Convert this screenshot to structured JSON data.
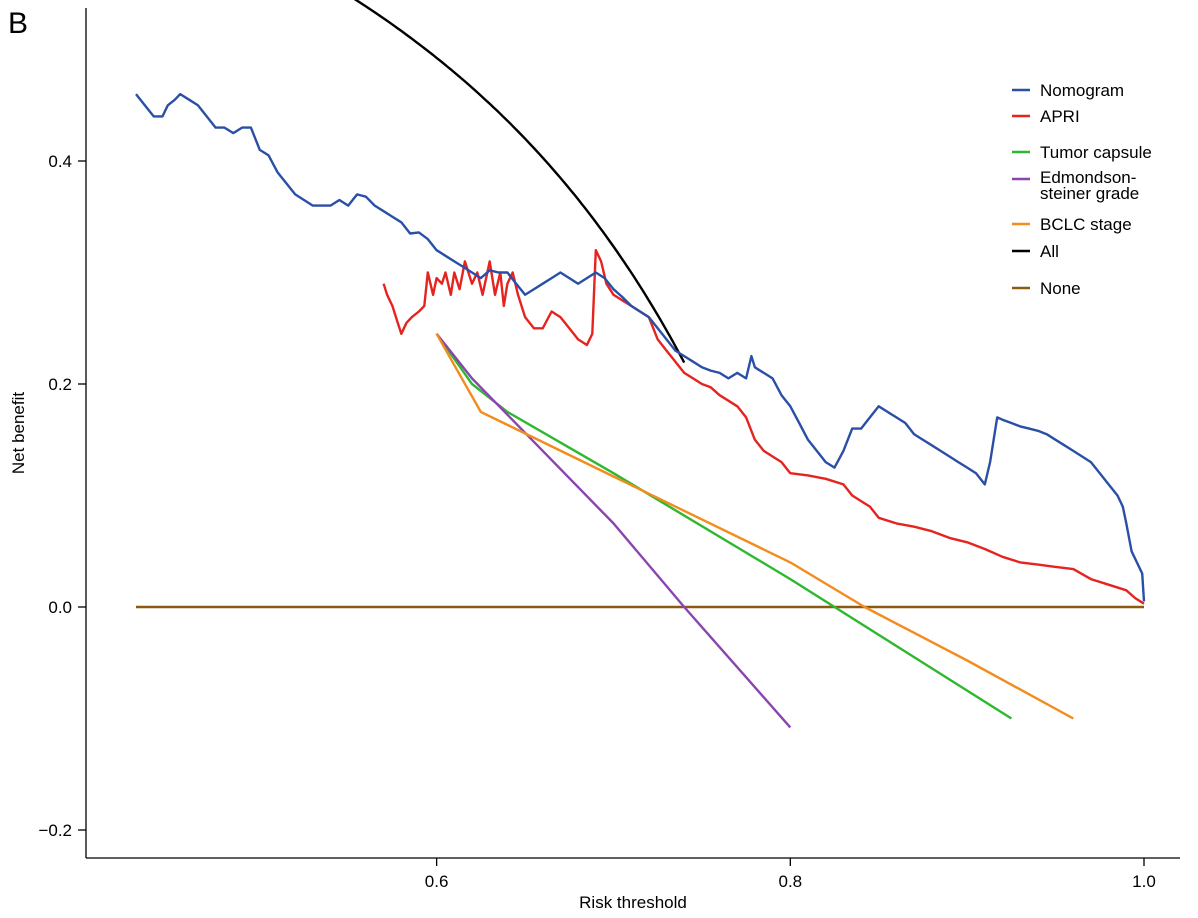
{
  "panel_label": "B",
  "chart_data": {
    "type": "line",
    "xlabel": "Risk threshold",
    "ylabel": "Net benefit",
    "xlim": [
      0.43,
      1.01
    ],
    "ylim": [
      -0.21,
      0.54
    ],
    "xticks": [
      0.6,
      0.8,
      1.0
    ],
    "xtick_labels": [
      "0.6",
      "0.8",
      "1.0"
    ],
    "yticks": [
      -0.2,
      0.0,
      0.2,
      0.4
    ],
    "ytick_labels": [
      "−0.2",
      "0.0",
      "0.2",
      "0.4"
    ],
    "grid": false,
    "legend_position": "top-right",
    "series": [
      {
        "name": "Nomogram",
        "color": "#2a4fa6",
        "points": [
          [
            0.43,
            0.46
          ],
          [
            0.435,
            0.45
          ],
          [
            0.44,
            0.44
          ],
          [
            0.445,
            0.44
          ],
          [
            0.448,
            0.45
          ],
          [
            0.452,
            0.455
          ],
          [
            0.455,
            0.46
          ],
          [
            0.46,
            0.455
          ],
          [
            0.465,
            0.45
          ],
          [
            0.47,
            0.44
          ],
          [
            0.475,
            0.43
          ],
          [
            0.48,
            0.43
          ],
          [
            0.485,
            0.425
          ],
          [
            0.49,
            0.43
          ],
          [
            0.495,
            0.43
          ],
          [
            0.5,
            0.41
          ],
          [
            0.505,
            0.405
          ],
          [
            0.51,
            0.39
          ],
          [
            0.515,
            0.38
          ],
          [
            0.52,
            0.37
          ],
          [
            0.525,
            0.365
          ],
          [
            0.53,
            0.36
          ],
          [
            0.535,
            0.36
          ],
          [
            0.54,
            0.36
          ],
          [
            0.545,
            0.365
          ],
          [
            0.55,
            0.36
          ],
          [
            0.555,
            0.37
          ],
          [
            0.56,
            0.368
          ],
          [
            0.565,
            0.36
          ],
          [
            0.57,
            0.355
          ],
          [
            0.575,
            0.35
          ],
          [
            0.58,
            0.345
          ],
          [
            0.585,
            0.335
          ],
          [
            0.59,
            0.336
          ],
          [
            0.595,
            0.33
          ],
          [
            0.6,
            0.32
          ],
          [
            0.605,
            0.315
          ],
          [
            0.61,
            0.31
          ],
          [
            0.615,
            0.305
          ],
          [
            0.62,
            0.3
          ],
          [
            0.625,
            0.295
          ],
          [
            0.63,
            0.302
          ],
          [
            0.635,
            0.3
          ],
          [
            0.64,
            0.3
          ],
          [
            0.645,
            0.29
          ],
          [
            0.65,
            0.28
          ],
          [
            0.655,
            0.285
          ],
          [
            0.66,
            0.29
          ],
          [
            0.665,
            0.295
          ],
          [
            0.67,
            0.3
          ],
          [
            0.675,
            0.295
          ],
          [
            0.68,
            0.29
          ],
          [
            0.685,
            0.295
          ],
          [
            0.69,
            0.3
          ],
          [
            0.695,
            0.295
          ],
          [
            0.7,
            0.285
          ],
          [
            0.705,
            0.278
          ],
          [
            0.71,
            0.27
          ],
          [
            0.715,
            0.265
          ],
          [
            0.72,
            0.26
          ],
          [
            0.725,
            0.25
          ],
          [
            0.73,
            0.24
          ],
          [
            0.735,
            0.23
          ],
          [
            0.74,
            0.225
          ],
          [
            0.745,
            0.22
          ],
          [
            0.75,
            0.215
          ],
          [
            0.755,
            0.212
          ],
          [
            0.76,
            0.21
          ],
          [
            0.765,
            0.205
          ],
          [
            0.77,
            0.21
          ],
          [
            0.775,
            0.205
          ],
          [
            0.778,
            0.225
          ],
          [
            0.78,
            0.215
          ],
          [
            0.785,
            0.21
          ],
          [
            0.79,
            0.205
          ],
          [
            0.795,
            0.19
          ],
          [
            0.8,
            0.18
          ],
          [
            0.805,
            0.165
          ],
          [
            0.81,
            0.15
          ],
          [
            0.815,
            0.14
          ],
          [
            0.82,
            0.13
          ],
          [
            0.825,
            0.125
          ],
          [
            0.83,
            0.14
          ],
          [
            0.835,
            0.16
          ],
          [
            0.84,
            0.16
          ],
          [
            0.845,
            0.17
          ],
          [
            0.85,
            0.18
          ],
          [
            0.855,
            0.175
          ],
          [
            0.86,
            0.17
          ],
          [
            0.865,
            0.165
          ],
          [
            0.87,
            0.155
          ],
          [
            0.875,
            0.15
          ],
          [
            0.88,
            0.145
          ],
          [
            0.885,
            0.14
          ],
          [
            0.89,
            0.135
          ],
          [
            0.895,
            0.13
          ],
          [
            0.9,
            0.125
          ],
          [
            0.905,
            0.12
          ],
          [
            0.91,
            0.11
          ],
          [
            0.913,
            0.13
          ],
          [
            0.917,
            0.17
          ],
          [
            0.92,
            0.168
          ],
          [
            0.925,
            0.165
          ],
          [
            0.93,
            0.162
          ],
          [
            0.935,
            0.16
          ],
          [
            0.94,
            0.158
          ],
          [
            0.945,
            0.155
          ],
          [
            0.95,
            0.15
          ],
          [
            0.955,
            0.145
          ],
          [
            0.96,
            0.14
          ],
          [
            0.965,
            0.135
          ],
          [
            0.97,
            0.13
          ],
          [
            0.975,
            0.12
          ],
          [
            0.98,
            0.11
          ],
          [
            0.985,
            0.1
          ],
          [
            0.988,
            0.09
          ],
          [
            0.99,
            0.075
          ],
          [
            0.993,
            0.05
          ],
          [
            0.996,
            0.04
          ],
          [
            0.999,
            0.03
          ],
          [
            1.0,
            0.005
          ]
        ]
      },
      {
        "name": "APRI",
        "color": "#e52420",
        "points": [
          [
            0.57,
            0.29
          ],
          [
            0.572,
            0.28
          ],
          [
            0.575,
            0.27
          ],
          [
            0.578,
            0.255
          ],
          [
            0.58,
            0.245
          ],
          [
            0.583,
            0.255
          ],
          [
            0.586,
            0.26
          ],
          [
            0.59,
            0.265
          ],
          [
            0.593,
            0.27
          ],
          [
            0.595,
            0.3
          ],
          [
            0.598,
            0.28
          ],
          [
            0.6,
            0.295
          ],
          [
            0.603,
            0.29
          ],
          [
            0.605,
            0.3
          ],
          [
            0.608,
            0.28
          ],
          [
            0.61,
            0.3
          ],
          [
            0.613,
            0.285
          ],
          [
            0.616,
            0.31
          ],
          [
            0.62,
            0.29
          ],
          [
            0.623,
            0.3
          ],
          [
            0.626,
            0.28
          ],
          [
            0.63,
            0.31
          ],
          [
            0.633,
            0.28
          ],
          [
            0.636,
            0.3
          ],
          [
            0.638,
            0.27
          ],
          [
            0.64,
            0.29
          ],
          [
            0.643,
            0.3
          ],
          [
            0.646,
            0.28
          ],
          [
            0.65,
            0.26
          ],
          [
            0.655,
            0.25
          ],
          [
            0.66,
            0.25
          ],
          [
            0.665,
            0.265
          ],
          [
            0.67,
            0.26
          ],
          [
            0.675,
            0.25
          ],
          [
            0.68,
            0.24
          ],
          [
            0.685,
            0.235
          ],
          [
            0.688,
            0.245
          ],
          [
            0.69,
            0.32
          ],
          [
            0.693,
            0.31
          ],
          [
            0.696,
            0.29
          ],
          [
            0.7,
            0.28
          ],
          [
            0.705,
            0.275
          ],
          [
            0.71,
            0.27
          ],
          [
            0.715,
            0.265
          ],
          [
            0.72,
            0.26
          ],
          [
            0.725,
            0.24
          ],
          [
            0.73,
            0.23
          ],
          [
            0.735,
            0.22
          ],
          [
            0.74,
            0.21
          ],
          [
            0.745,
            0.205
          ],
          [
            0.75,
            0.2
          ],
          [
            0.755,
            0.197
          ],
          [
            0.76,
            0.19
          ],
          [
            0.765,
            0.185
          ],
          [
            0.77,
            0.18
          ],
          [
            0.775,
            0.17
          ],
          [
            0.78,
            0.15
          ],
          [
            0.785,
            0.14
          ],
          [
            0.79,
            0.135
          ],
          [
            0.795,
            0.13
          ],
          [
            0.8,
            0.12
          ],
          [
            0.81,
            0.118
          ],
          [
            0.82,
            0.115
          ],
          [
            0.83,
            0.11
          ],
          [
            0.835,
            0.1
          ],
          [
            0.84,
            0.095
          ],
          [
            0.845,
            0.09
          ],
          [
            0.85,
            0.08
          ],
          [
            0.86,
            0.075
          ],
          [
            0.87,
            0.072
          ],
          [
            0.88,
            0.068
          ],
          [
            0.89,
            0.062
          ],
          [
            0.9,
            0.058
          ],
          [
            0.91,
            0.052
          ],
          [
            0.92,
            0.045
          ],
          [
            0.93,
            0.04
          ],
          [
            0.94,
            0.038
          ],
          [
            0.95,
            0.036
          ],
          [
            0.96,
            0.034
          ],
          [
            0.97,
            0.025
          ],
          [
            0.98,
            0.02
          ],
          [
            0.99,
            0.015
          ],
          [
            0.995,
            0.008
          ],
          [
            1.0,
            0.003
          ]
        ]
      },
      {
        "name": "Tumor capsule",
        "color": "#2eb82e",
        "points": [
          [
            0.6,
            0.245
          ],
          [
            0.62,
            0.2
          ],
          [
            0.64,
            0.175
          ],
          [
            0.7,
            0.12
          ],
          [
            0.8,
            0.025
          ],
          [
            0.86,
            -0.035
          ],
          [
            0.925,
            -0.1
          ]
        ]
      },
      {
        "name": "Edmondson-steiner grade",
        "color": "#8a44b0",
        "points": [
          [
            0.6,
            0.245
          ],
          [
            0.62,
            0.205
          ],
          [
            0.7,
            0.075
          ],
          [
            0.74,
            0.0
          ],
          [
            0.8,
            -0.108
          ]
        ]
      },
      {
        "name": "BCLC stage",
        "color": "#f28c1e",
        "points": [
          [
            0.6,
            0.245
          ],
          [
            0.625,
            0.175
          ],
          [
            0.7,
            0.117
          ],
          [
            0.8,
            0.04
          ],
          [
            0.842,
            0.0
          ],
          [
            0.9,
            -0.048
          ],
          [
            0.96,
            -0.1
          ]
        ]
      },
      {
        "name": "All",
        "color": "#000000",
        "function": "all",
        "prevalence": 0.797,
        "x_range": [
          0.43,
          0.74
        ]
      },
      {
        "name": "None",
        "color": "#8b5a12",
        "points": [
          [
            0.43,
            0.0
          ],
          [
            1.0,
            0.0
          ]
        ]
      }
    ],
    "legend": [
      {
        "label": "Nomogram",
        "color": "#2a4fa6"
      },
      {
        "label": "APRI",
        "color": "#e52420"
      },
      {
        "label": "Tumor capsule",
        "color": "#2eb82e"
      },
      {
        "label": "Edmondson-\nsteiner grade",
        "color": "#8a44b0"
      },
      {
        "label": "BCLC stage",
        "color": "#f28c1e"
      },
      {
        "label": "All",
        "color": "#000000"
      },
      {
        "label": "None",
        "color": "#8b5a12"
      }
    ]
  }
}
